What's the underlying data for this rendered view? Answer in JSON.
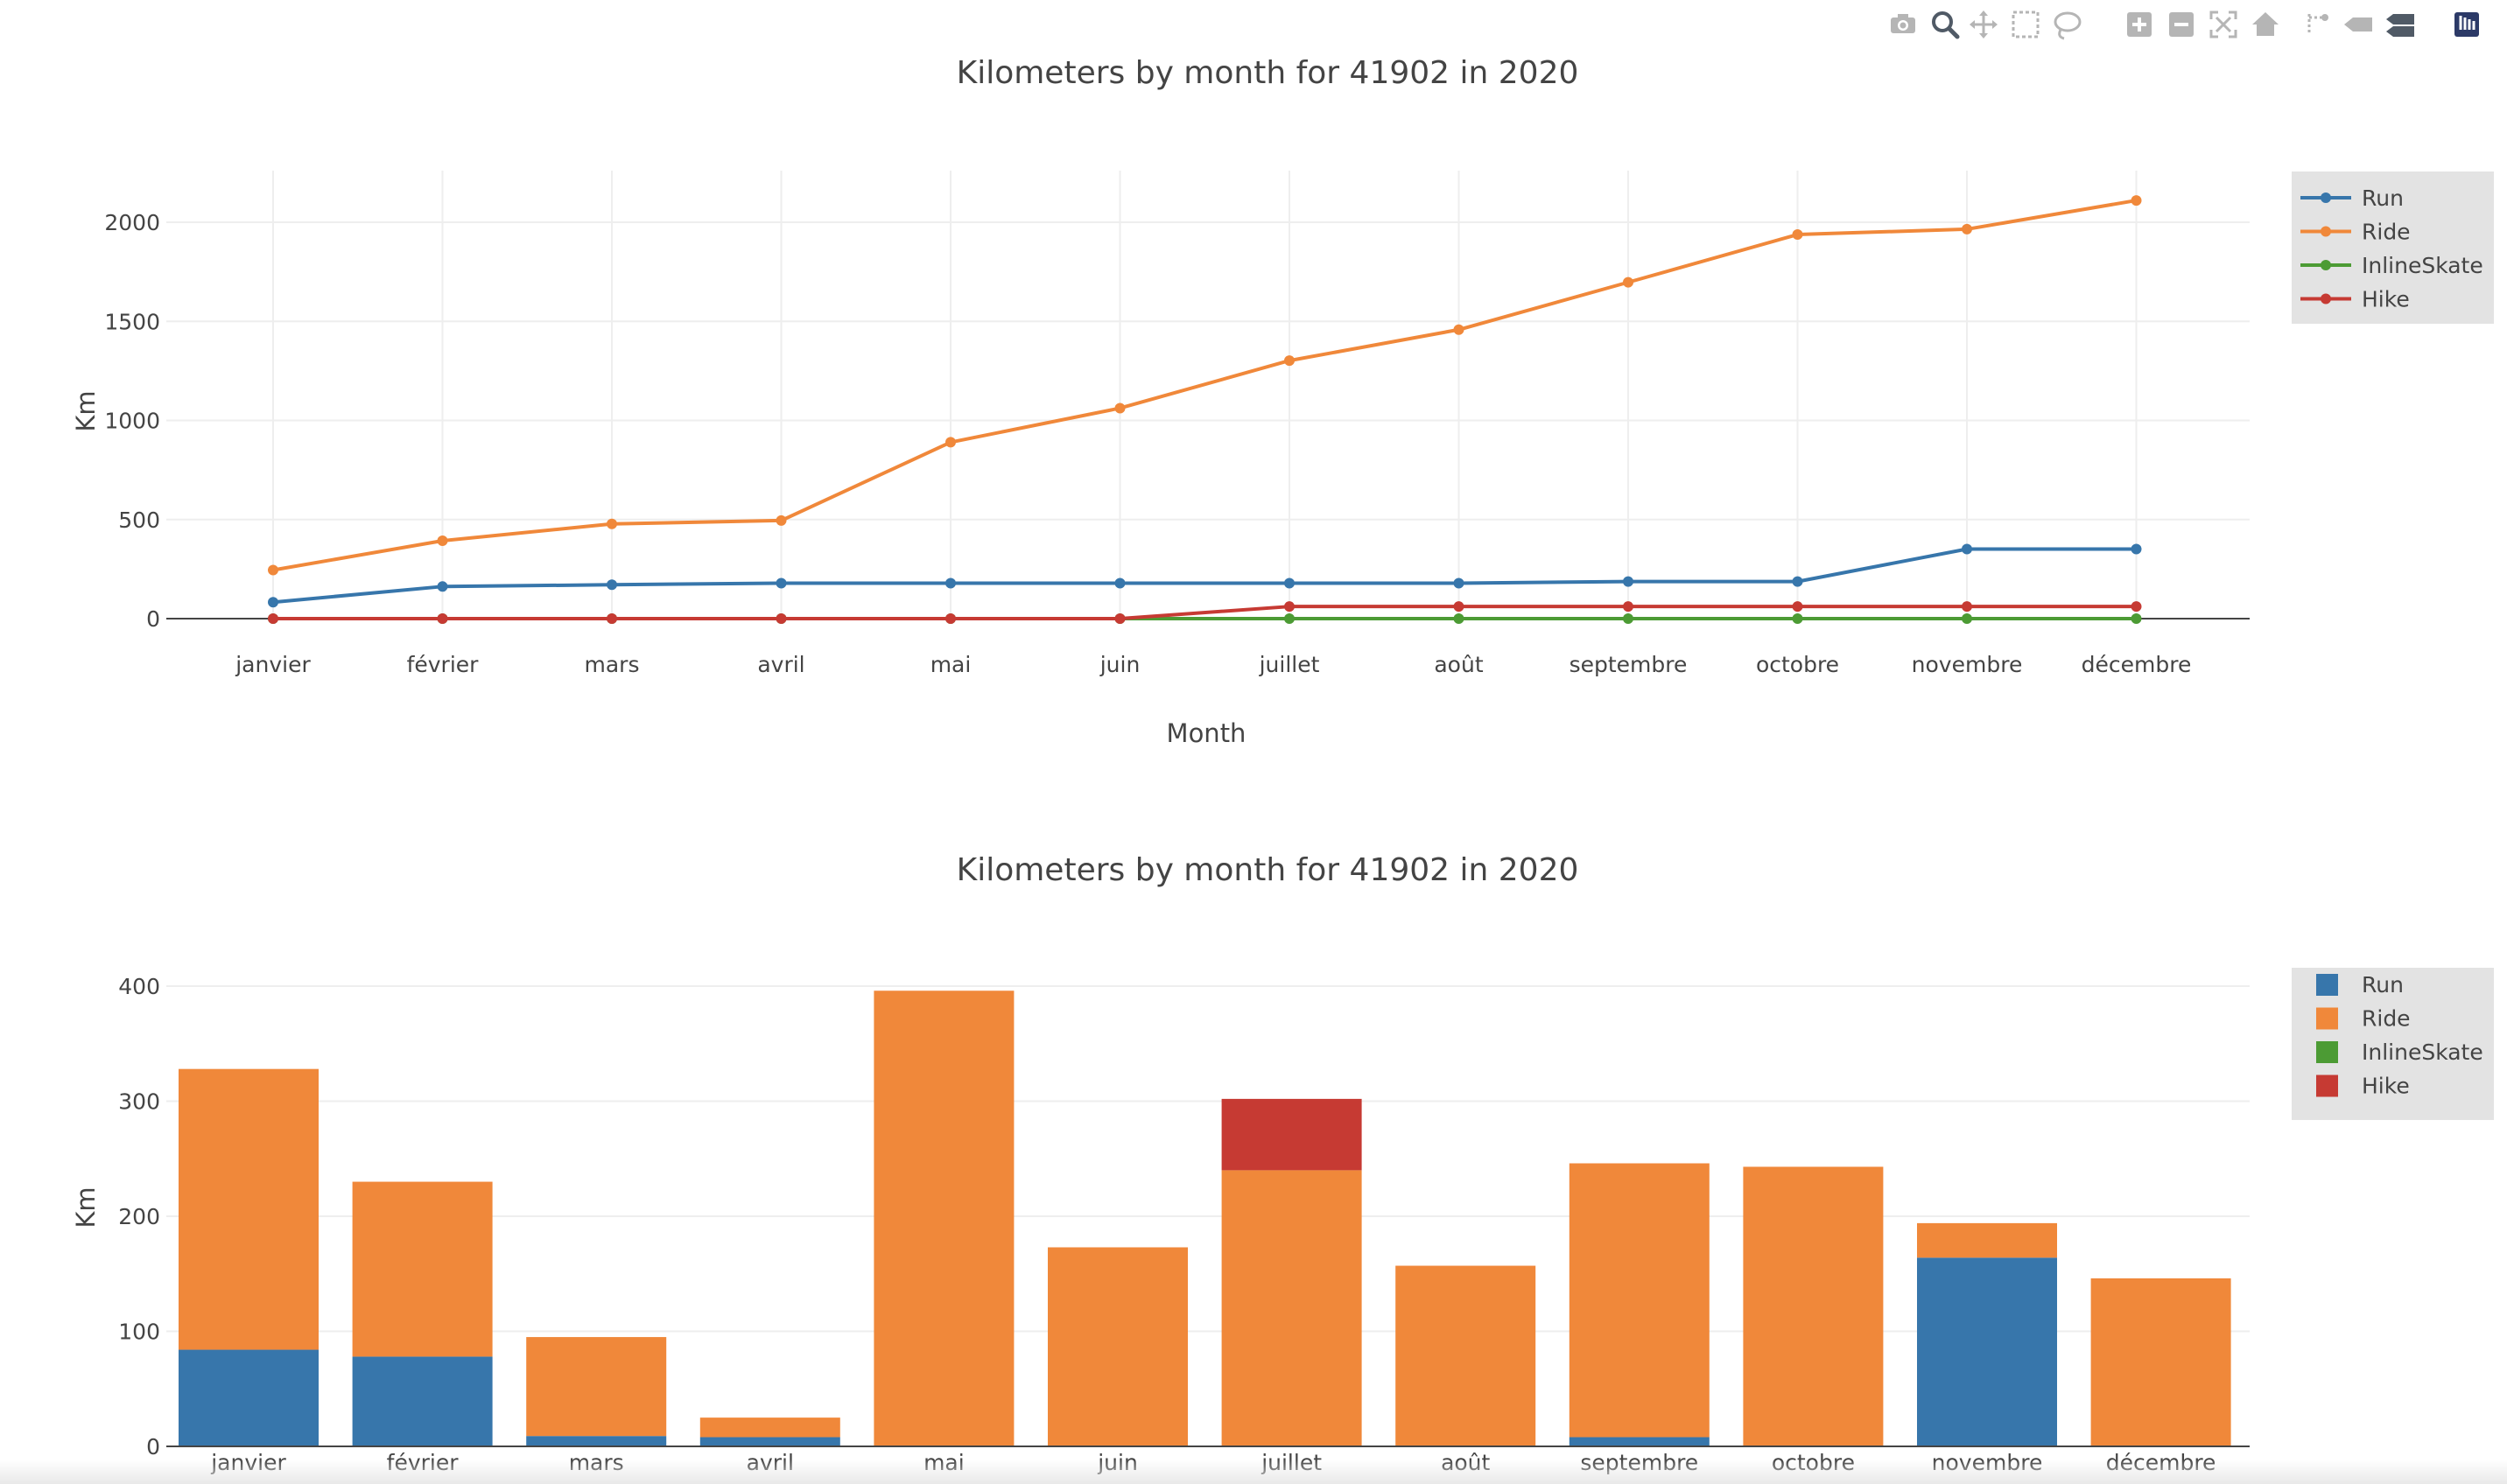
{
  "modebar": {
    "icons": [
      "camera-icon",
      "zoom-icon",
      "pan-icon",
      "box-select-icon",
      "lasso-select-icon",
      "zoom-in-icon",
      "zoom-out-icon",
      "autoscale-icon",
      "reset-axes-icon",
      "spike-lines-icon",
      "hover-closest-icon",
      "hover-compare-icon",
      "plotly-logo-icon"
    ]
  },
  "colors": {
    "Run": "#3776ab",
    "Ride": "#f0883a",
    "InlineSkate": "#4c9b34",
    "Hike": "#c63a33",
    "grid": "#eeeeee",
    "legend_bg": "#e3e3e3"
  },
  "chart_data": [
    {
      "type": "line",
      "title": "Kilometers by month for 41902 in 2020",
      "xlabel": "Month",
      "ylabel": "Km",
      "categories": [
        "janvier",
        "février",
        "mars",
        "avril",
        "mai",
        "juin",
        "juillet",
        "août",
        "septembre",
        "octobre",
        "novembre",
        "décembre"
      ],
      "ylim": [
        0,
        2250
      ],
      "yticks": [
        0,
        500,
        1000,
        1500,
        2000
      ],
      "grid": true,
      "legend_position": "top-right",
      "series": [
        {
          "name": "Run",
          "values": [
            83,
            162,
            171,
            179,
            179,
            179,
            179,
            179,
            187,
            187,
            351,
            351
          ]
        },
        {
          "name": "Ride",
          "values": [
            245,
            393,
            478,
            495,
            890,
            1062,
            1302,
            1458,
            1697,
            1938,
            1965,
            2110
          ]
        },
        {
          "name": "InlineSkate",
          "values": [
            0,
            0,
            0,
            0,
            0,
            0,
            0,
            0,
            0,
            0,
            0,
            0
          ]
        },
        {
          "name": "Hike",
          "values": [
            0,
            0,
            0,
            0,
            0,
            0,
            61,
            61,
            61,
            61,
            61,
            61
          ]
        }
      ]
    },
    {
      "type": "bar",
      "stacked": true,
      "title": "Kilometers by month for 41902 in 2020",
      "xlabel": "",
      "ylabel": "Km",
      "categories": [
        "janvier",
        "février",
        "mars",
        "avril",
        "mai",
        "juin",
        "juillet",
        "août",
        "septembre",
        "octobre",
        "novembre",
        "décembre"
      ],
      "ylim": [
        0,
        420
      ],
      "yticks": [
        0,
        100,
        200,
        300,
        400
      ],
      "grid": true,
      "legend_position": "top-right",
      "series": [
        {
          "name": "Run",
          "values": [
            84,
            78,
            9,
            8,
            0,
            0,
            0,
            0,
            8,
            0,
            164,
            0
          ]
        },
        {
          "name": "Ride",
          "values": [
            244,
            152,
            86,
            17,
            396,
            173,
            240,
            157,
            238,
            243,
            30,
            146
          ]
        },
        {
          "name": "InlineSkate",
          "values": [
            0,
            0,
            0,
            0,
            0,
            0,
            0,
            0,
            0,
            0,
            0,
            0
          ]
        },
        {
          "name": "Hike",
          "values": [
            0,
            0,
            0,
            0,
            0,
            0,
            62,
            0,
            0,
            0,
            0,
            0
          ]
        }
      ]
    }
  ]
}
